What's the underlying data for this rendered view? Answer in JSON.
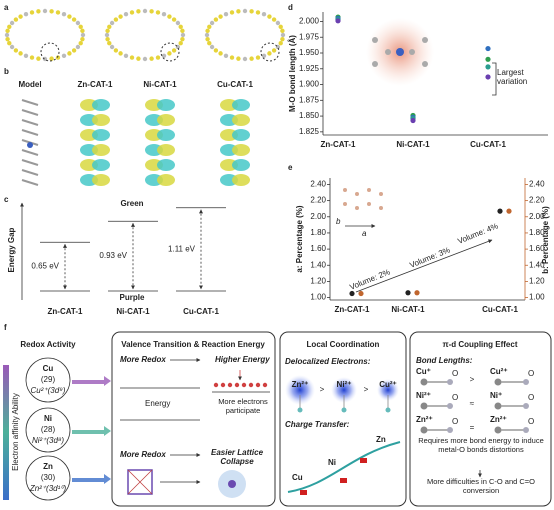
{
  "panel_labels": [
    "a",
    "b",
    "c",
    "d",
    "e",
    "f"
  ],
  "panel_b": {
    "columns": [
      "Model",
      "Zn-CAT-1",
      "Ni-CAT-1",
      "Cu-CAT-1"
    ]
  },
  "chart_data": [
    {
      "type": "gap",
      "y_label": "Energy Gap",
      "top_label": "Green",
      "bottom_label": "Purple",
      "categories": [
        "Zn-CAT-1",
        "Ni-CAT-1",
        "Cu-CAT-1"
      ],
      "values": [
        0.65,
        0.93,
        1.11
      ],
      "value_labels": [
        "0.65 eV",
        "0.93 eV",
        "1.11 eV"
      ],
      "top_color": "#3a9a3a",
      "bottom_color": "#7a3aa0"
    },
    {
      "type": "scatter",
      "y_label": "M-O bond length (Å)",
      "categories": [
        "Zn-CAT-1",
        "Ni-CAT-1",
        "Cu-CAT-1"
      ],
      "series": [
        {
          "color": "#2e9e4f",
          "values": [
            2.007,
            1.851,
            1.94
          ]
        },
        {
          "color": "#2f6fbf",
          "values": [
            2.005,
            1.848,
            1.957
          ]
        },
        {
          "color": "#2a9d8f",
          "values": [
            2.003,
            1.846,
            1.928
          ]
        },
        {
          "color": "#6a3fb0",
          "values": [
            2.001,
            1.843,
            1.912
          ]
        }
      ],
      "ylim": [
        1.82,
        2.015
      ],
      "yticks": [
        {
          "value": 1.825,
          "label": "1.825"
        },
        {
          "value": 1.85,
          "label": "1.850"
        },
        {
          "value": 1.875,
          "label": "1.875"
        },
        {
          "value": 1.9,
          "label": "1.900"
        },
        {
          "value": 1.925,
          "label": "1.925"
        },
        {
          "value": 1.95,
          "label": "1.950"
        },
        {
          "value": 1.975,
          "label": "1.975"
        },
        {
          "value": 2,
          "label": "2.000"
        }
      ],
      "annotation": "Largest variation"
    },
    {
      "type": "scatter",
      "y_label": "a: Percentage (%)",
      "y2_label": "b: Percentage (%)",
      "categories": [
        "Zn-CAT-1",
        "Ni-CAT-1",
        "Cu-CAT-1"
      ],
      "series": [
        {
          "color": "#222222",
          "values": [
            1.05,
            1.06,
            2.07
          ]
        },
        {
          "color": "#c0662f",
          "axis": "y2",
          "values": [
            1.05,
            1.06,
            2.07
          ]
        }
      ],
      "ylim": [
        0.97,
        2.48
      ],
      "yticks": [
        {
          "value": 1,
          "label": "1.00"
        },
        {
          "value": 1.2,
          "label": "1.20"
        },
        {
          "value": 1.4,
          "label": "1.40"
        },
        {
          "value": 1.6,
          "label": "1.60"
        },
        {
          "value": 1.8,
          "label": "1.80"
        },
        {
          "value": 2,
          "label": "2.00"
        },
        {
          "value": 2.2,
          "label": "2.20"
        },
        {
          "value": 2.4,
          "label": "2.40"
        }
      ],
      "y2lim": [
        0.97,
        2.48
      ],
      "y2ticks": [
        {
          "value": 1,
          "label": "1.00"
        },
        {
          "value": 1.2,
          "label": "1.20"
        },
        {
          "value": 1.4,
          "label": "1.40"
        },
        {
          "value": 1.6,
          "label": "1.60"
        },
        {
          "value": 1.8,
          "label": "1.80"
        },
        {
          "value": 2,
          "label": "2.00"
        },
        {
          "value": 2.2,
          "label": "2.20"
        },
        {
          "value": 2.4,
          "label": "2.40"
        }
      ],
      "annotations": [
        "Volume: 2%",
        "Volume: 3%",
        "Volume: 4%"
      ],
      "inset_labels": [
        "b",
        "a"
      ]
    }
  ],
  "panel_f": {
    "redox": {
      "title": "Redox Activity",
      "axis_label": "Electron affinity Ability",
      "elements": [
        {
          "symbol": "Cu",
          "number": "(29)",
          "ion": "Cu²⁺(3d⁹)"
        },
        {
          "symbol": "Ni",
          "number": "(28)",
          "ion": "Ni²⁺(3d⁸)"
        },
        {
          "symbol": "Zn",
          "number": "(30)",
          "ion": "Zn²⁺(3d¹⁰)"
        }
      ]
    },
    "valence": {
      "title": "Valence Transition & Reaction Energy",
      "top_left": "More Redox",
      "top_right": "Higher Energy",
      "energy": "Energy",
      "electrons": "More electrons participate",
      "bottom_left": "More Redox",
      "bottom_right": "Easier Lattice Collapse"
    },
    "coordination": {
      "title": "Local Coordination",
      "delocalized": "Delocalized Electrons:",
      "ions": [
        "Zn²⁺",
        "Ni²⁺",
        "Cu²⁺"
      ],
      "comparators": [
        ">",
        ">"
      ],
      "charge_transfer": "Charge Transfer:",
      "curve_labels": [
        "Zn",
        "Ni",
        "Cu"
      ]
    },
    "coupling": {
      "title": "π-d Coupling Effect",
      "bond_lengths": "Bond Lengths:",
      "rows": [
        {
          "left": "Cu⁺",
          "comparator": ">",
          "right": "Cu²⁺"
        },
        {
          "left": "Ni²⁺",
          "comparator": "≈",
          "right": "Ni⁺"
        },
        {
          "left": "Zn²⁺",
          "comparator": "=",
          "right": "Zn²⁺"
        }
      ],
      "atom": "O",
      "note": "Requires more bond energy to induce metal-O bonds distortions",
      "conclusion": "More difficulties in C-O and C=O conversion"
    }
  }
}
